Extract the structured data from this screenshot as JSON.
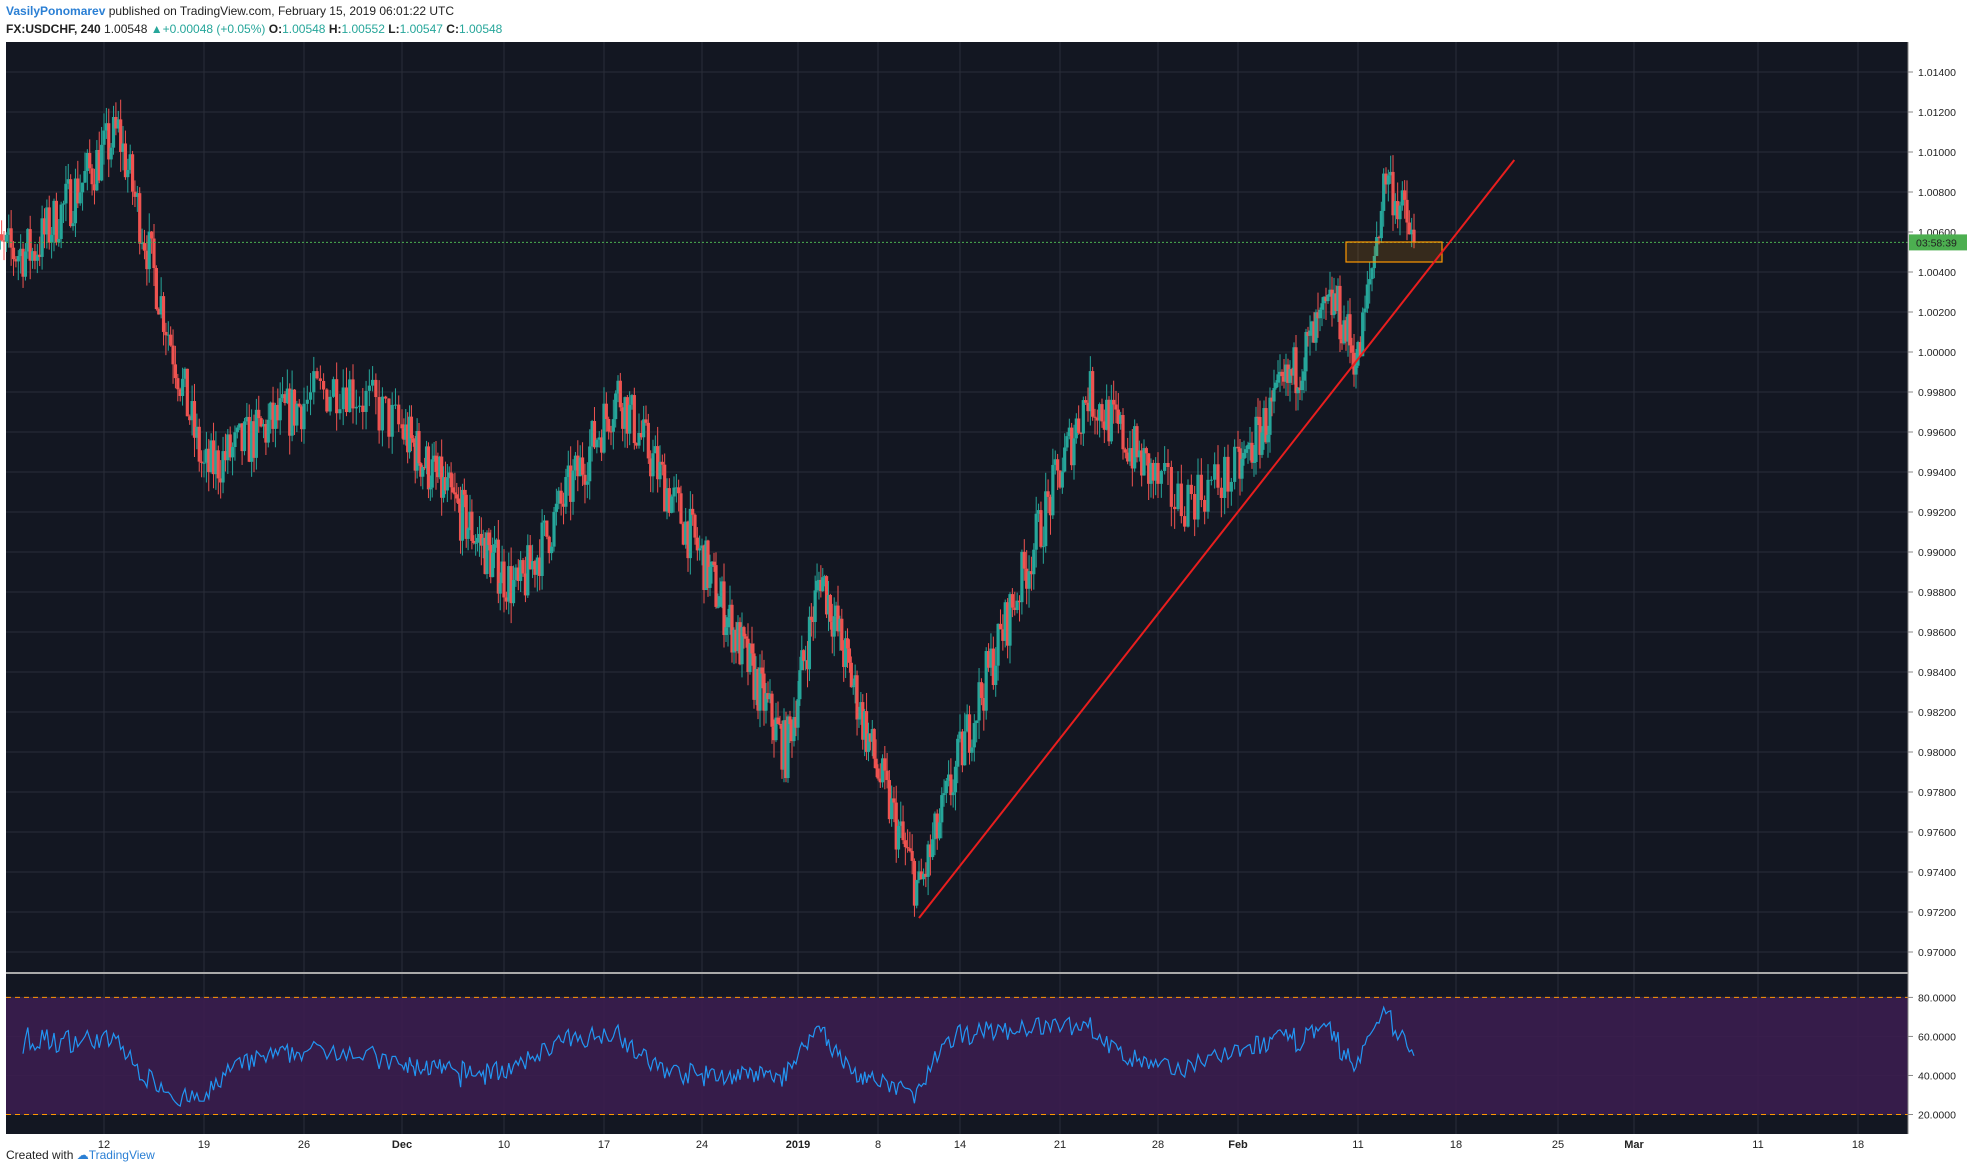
{
  "header": {
    "author": "VasilyPonomarev",
    "published": "published on TradingView.com, February 15, 2019 06:01:22 UTC"
  },
  "symbol": {
    "name": "FX:USDCHF, 240",
    "last": "1.00548",
    "change": "+0.00048 (+0.05%)",
    "o_label": "O:",
    "o": "1.00548",
    "h_label": "H:",
    "h": "1.00552",
    "l_label": "L:",
    "l": "1.00547",
    "c_label": "C:",
    "c": "1.00548"
  },
  "footer": {
    "created_with": "Created with",
    "brand": "TradingView"
  },
  "colors": {
    "background": "#131722",
    "grid": "#2a2e39",
    "up": "#26a69a",
    "down": "#ef5350",
    "trendline": "#e81e1e",
    "box": "#ff9800",
    "price_line": "#4caf50",
    "rsi_line": "#2196f3",
    "rsi_band": "#3b1d4f",
    "rsi_level": "#ff9800"
  },
  "price_label": {
    "countdown": "03:58:39"
  },
  "chart_data": [
    {
      "type": "candlestick",
      "ylim": [
        0.969,
        1.0155
      ],
      "y_ticks": [
        "1.01400",
        "1.01200",
        "1.01000",
        "1.00800",
        "1.00600",
        "1.00400",
        "1.00200",
        "1.00000",
        "0.99800",
        "0.99600",
        "0.99400",
        "0.99200",
        "0.99000",
        "0.98800",
        "0.98600",
        "0.98400",
        "0.98200",
        "0.98000",
        "0.97800",
        "0.97600",
        "0.97400",
        "0.97200",
        "0.97000"
      ],
      "x_ticks": [
        "12",
        "19",
        "26",
        "Dec",
        "10",
        "17",
        "24",
        "2019",
        "8",
        "14",
        "21",
        "28",
        "Feb",
        "11",
        "18",
        "25",
        "Mar",
        "11",
        "18"
      ],
      "key_points": [
        {
          "date": "Nov 7",
          "close": 1.005
        },
        {
          "date": "Nov 13",
          "close": 1.011
        },
        {
          "date": "Nov 19",
          "close": 0.994
        },
        {
          "date": "Nov 28",
          "close": 0.9985
        },
        {
          "date": "Dec 11",
          "close": 0.988
        },
        {
          "date": "Dec 18",
          "close": 0.998
        },
        {
          "date": "Dec 31",
          "close": 0.98
        },
        {
          "date": "Jan 3",
          "close": 0.989
        },
        {
          "date": "Jan 11",
          "close": 0.973
        },
        {
          "date": "Jan 15",
          "close": 0.982
        },
        {
          "date": "Jan 23",
          "close": 0.998
        },
        {
          "date": "Jan 29",
          "close": 0.9925
        },
        {
          "date": "Feb 1",
          "close": 0.994
        },
        {
          "date": "Feb 9",
          "close": 1.0025
        },
        {
          "date": "Feb 11",
          "close": 0.9995
        },
        {
          "date": "Feb 13",
          "close": 1.009
        },
        {
          "date": "Feb 15",
          "close": 1.00548
        }
      ],
      "annotations": {
        "trendline": {
          "from": {
            "date": "Jan 11",
            "price": 0.9717
          },
          "to": {
            "date": "Feb 22",
            "price": 1.0096
          }
        },
        "support_box": {
          "from_date": "Feb 10",
          "to_date": "Feb 17",
          "price_top": 1.0055,
          "price_bottom": 1.0045
        },
        "last_price": 1.00548
      }
    },
    {
      "type": "line",
      "indicator": "RSI",
      "ylim": [
        10,
        92
      ],
      "y_ticks": [
        "80.0000",
        "60.0000",
        "40.0000",
        "20.0000"
      ],
      "levels": [
        80,
        20
      ]
    }
  ]
}
